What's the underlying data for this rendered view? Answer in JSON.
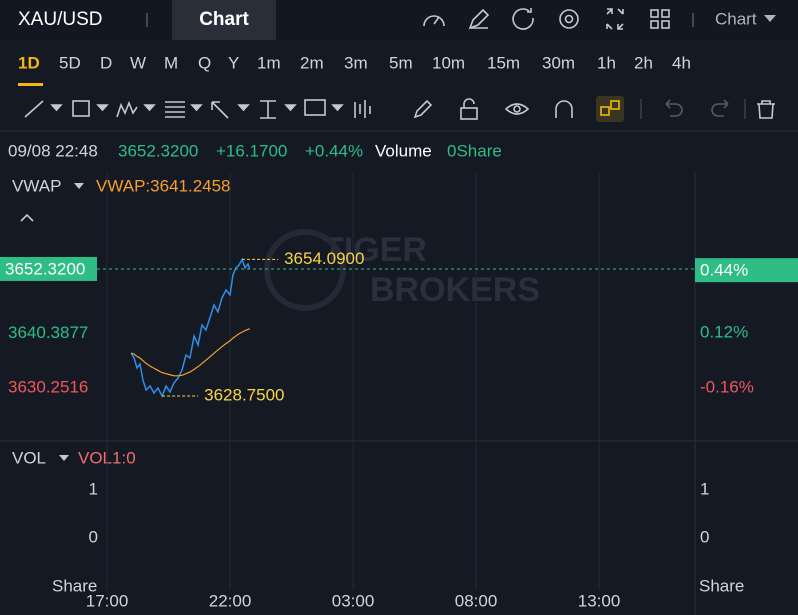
{
  "header": {
    "symbol": "XAU/USD",
    "tab": "Chart",
    "menu": "Chart"
  },
  "timeframes": [
    "1D",
    "5D",
    "D",
    "W",
    "M",
    "Q",
    "Y",
    "1m",
    "2m",
    "3m",
    "5m",
    "10m",
    "15m",
    "30m",
    "1h",
    "2h",
    "4h"
  ],
  "active_timeframe": 0,
  "info": {
    "datetime": "09/08 22:48",
    "price": "3652.3200",
    "change": "+16.1700",
    "change_pct": "+0.44%",
    "volume_label": "Volume",
    "volume": "0Share"
  },
  "watermark": [
    "TIGER",
    "BROKERS"
  ],
  "chart_data": [
    {
      "type": "line",
      "indicator": "VWAP",
      "legend_label": "VWAP:3641.2458",
      "x": [
        17.98,
        18.1,
        18.22,
        18.34,
        18.46,
        18.59,
        18.75,
        18.91,
        19.07,
        19.24,
        19.4,
        19.56,
        19.72,
        19.89,
        20.05,
        20.21,
        20.37,
        20.54,
        20.7,
        20.86,
        21.02,
        21.18,
        21.35,
        21.51,
        21.67,
        21.84,
        22.0,
        22.12,
        22.24,
        22.37,
        22.49,
        22.61,
        22.73,
        22.8
      ],
      "series": [
        {
          "color": "#2f8fe8",
          "values": [
            3636.74,
            3635.81,
            3633.95,
            3634.7,
            3631.73,
            3629.87,
            3630.61,
            3629.32,
            3630.24,
            3628.75,
            3630.61,
            3629.5,
            3631.17,
            3632.1,
            3633.58,
            3636.36,
            3635.81,
            3639.89,
            3638.22,
            3641.93,
            3641.0,
            3643.23,
            3645.64,
            3644.34,
            3646.94,
            3648.42,
            3647.5,
            3651.21,
            3652.51,
            3653.06,
            3654.09,
            3652.51,
            3653.25,
            3652.32
          ]
        },
        {
          "name": "VWAP",
          "color": "#f59f2f",
          "values": [
            3636.74,
            3636.5,
            3636.1,
            3635.8,
            3635.3,
            3634.8,
            3634.3,
            3633.9,
            3633.5,
            3633.1,
            3632.9,
            3632.7,
            3632.5,
            3632.5,
            3632.6,
            3632.9,
            3633.2,
            3633.7,
            3634.2,
            3634.8,
            3635.4,
            3636.0,
            3636.7,
            3637.3,
            3637.9,
            3638.5,
            3639.0,
            3639.5,
            3639.9,
            3640.3,
            3640.6,
            3640.9,
            3641.1,
            3641.2458
          ]
        }
      ],
      "xlim": [
        12.65,
        40.9
      ],
      "xticks": [
        {
          "value": 17,
          "label": "17:00"
        },
        {
          "value": 22,
          "label": "22:00"
        },
        {
          "value": 27,
          "label": "03:00"
        },
        {
          "value": 32,
          "label": "08:00"
        },
        {
          "value": 37,
          "label": "13:00"
        }
      ],
      "ylim": [
        3620.6,
        3670.3
      ],
      "yticks": [
        3640.3877,
        3630.2516
      ],
      "y2lim": [
        -0.425,
        0.94
      ],
      "y2ticks": [
        {
          "value": 0.12,
          "label": "0.12%"
        },
        {
          "value": -0.16,
          "label": "-0.16%"
        }
      ],
      "last": {
        "value": 3652.32,
        "label": "3652.3200",
        "pct": 0.44,
        "pct_label": "0.44%"
      },
      "annotations": [
        {
          "x": 22.49,
          "value": 3654.09,
          "label": "3654.0900"
        },
        {
          "x": 19.24,
          "value": 3628.75,
          "label": "3628.7500"
        }
      ],
      "up_color": "#2ebd85",
      "down_color": "#f0565a",
      "grid": true
    },
    {
      "type": "bar",
      "indicator": "VOL",
      "legend_label": "VOL1:0",
      "unit": "Share",
      "ylim": [
        -1.08,
        2.02
      ],
      "yticks": [
        1,
        0
      ]
    }
  ]
}
